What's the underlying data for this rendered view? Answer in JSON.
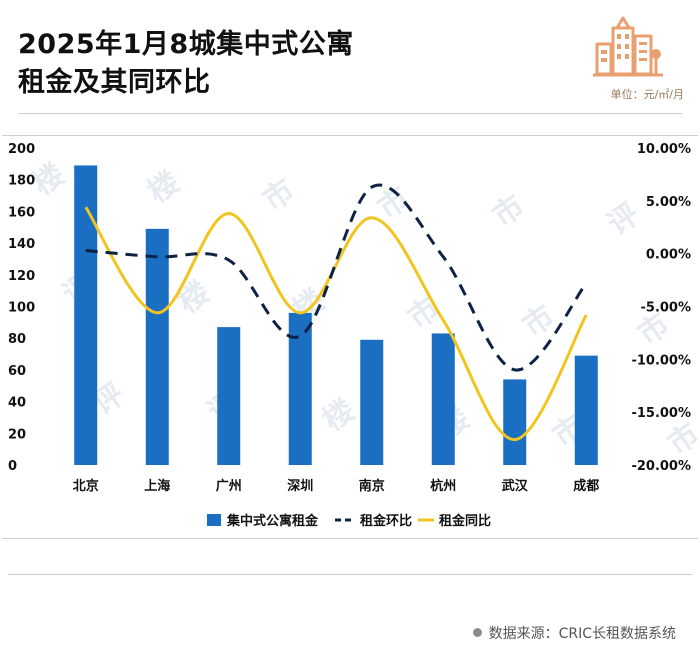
{
  "header": {
    "title_line1": "2025年1月8城集中式公寓",
    "title_line2": "租金及其同环比",
    "unit": "单位：元/㎡/月"
  },
  "logo": {
    "icon": "buildings-icon",
    "color": "#e8a070"
  },
  "footer": {
    "source": "数据来源：CRIC长租数据系统"
  },
  "colors": {
    "bar": "#1a6fc2",
    "mom": "#0e2245",
    "yoy": "#f2c51e"
  },
  "chart_data": {
    "type": "bar",
    "title": "2025年1月8城集中式公寓租金及其同环比",
    "categories": [
      "北京",
      "上海",
      "广州",
      "深圳",
      "南京",
      "杭州",
      "武汉",
      "成都"
    ],
    "y_left": {
      "min": 0,
      "max": 200,
      "step": 20,
      "ticks": [
        "0",
        "20",
        "40",
        "60",
        "80",
        "100",
        "120",
        "140",
        "160",
        "180",
        "200"
      ]
    },
    "y_right": {
      "min": -20,
      "max": 10,
      "step": 5,
      "ticks": [
        "-20.00%",
        "-15.00%",
        "-10.00%",
        "-5.00%",
        "0.00%",
        "5.00%",
        "10.00%"
      ]
    },
    "series": [
      {
        "name": "集中式公寓租金",
        "kind": "bar",
        "axis": "left",
        "values": [
          189,
          149,
          87,
          96,
          79,
          83,
          54,
          69
        ]
      },
      {
        "name": "租金环比",
        "kind": "line-dashed",
        "axis": "right",
        "values": [
          0.3,
          -0.3,
          -0.6,
          -7.8,
          6.3,
          -0.3,
          -11.0,
          -2.8
        ]
      },
      {
        "name": "租金同比",
        "kind": "line",
        "axis": "right",
        "values": [
          4.4,
          -5.6,
          3.8,
          -5.6,
          3.4,
          -6.3,
          -17.6,
          -5.8
        ]
      }
    ],
    "legend": "bottom",
    "grid": false
  }
}
